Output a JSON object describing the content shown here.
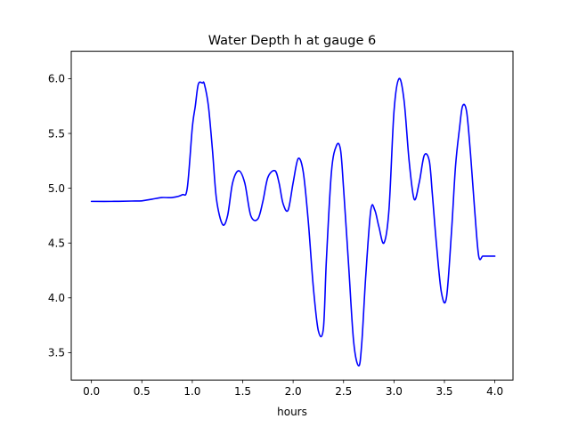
{
  "chart_data": {
    "type": "line",
    "title": "Water Depth h at gauge 6",
    "xlabel": "hours",
    "ylabel": "",
    "xlim": [
      -0.2,
      4.18
    ],
    "ylim": [
      3.25,
      6.25
    ],
    "xticks": [
      0.0,
      0.5,
      1.0,
      1.5,
      2.0,
      2.5,
      3.0,
      3.5,
      4.0
    ],
    "xtick_labels": [
      "0.0",
      "0.5",
      "1.0",
      "1.5",
      "2.0",
      "2.5",
      "3.0",
      "3.5",
      "4.0"
    ],
    "yticks": [
      3.5,
      4.0,
      4.5,
      5.0,
      5.5,
      6.0
    ],
    "ytick_labels": [
      "3.5",
      "4.0",
      "4.5",
      "5.0",
      "5.5",
      "6.0"
    ],
    "grid": false,
    "legend": "none",
    "series": [
      {
        "color": "#0000ff",
        "x": [
          0.0,
          0.2,
          0.4,
          0.5,
          0.6,
          0.7,
          0.8,
          0.9,
          0.95,
          1.0,
          1.03,
          1.06,
          1.1,
          1.12,
          1.16,
          1.2,
          1.24,
          1.3,
          1.35,
          1.4,
          1.46,
          1.52,
          1.58,
          1.65,
          1.7,
          1.75,
          1.82,
          1.86,
          1.9,
          1.95,
          2.0,
          2.05,
          2.1,
          2.15,
          2.2,
          2.25,
          2.3,
          2.33,
          2.38,
          2.43,
          2.47,
          2.5,
          2.55,
          2.6,
          2.65,
          2.68,
          2.72,
          2.77,
          2.81,
          2.85,
          2.9,
          2.95,
          3.0,
          3.05,
          3.1,
          3.15,
          3.2,
          3.25,
          3.3,
          3.35,
          3.38,
          3.42,
          3.47,
          3.52,
          3.57,
          3.61,
          3.65,
          3.68,
          3.72,
          3.76,
          3.8,
          3.84,
          3.88,
          3.92,
          3.96,
          4.0
        ],
        "y": [
          4.88,
          4.88,
          4.883,
          4.885,
          4.9,
          4.915,
          4.915,
          4.94,
          5.0,
          5.55,
          5.75,
          5.95,
          5.96,
          5.95,
          5.75,
          5.35,
          4.9,
          4.67,
          4.75,
          5.05,
          5.16,
          5.05,
          4.75,
          4.72,
          4.88,
          5.1,
          5.16,
          5.05,
          4.86,
          4.8,
          5.05,
          5.27,
          5.15,
          4.7,
          4.1,
          3.7,
          3.72,
          4.35,
          5.15,
          5.39,
          5.35,
          5.0,
          4.3,
          3.6,
          3.38,
          3.58,
          4.2,
          4.8,
          4.8,
          4.65,
          4.5,
          4.8,
          5.7,
          6.0,
          5.8,
          5.25,
          4.9,
          5.05,
          5.3,
          5.25,
          4.95,
          4.5,
          4.05,
          4.0,
          4.6,
          5.2,
          5.55,
          5.75,
          5.7,
          5.3,
          4.8,
          4.38,
          4.38,
          4.38,
          4.38,
          4.38
        ]
      }
    ]
  }
}
